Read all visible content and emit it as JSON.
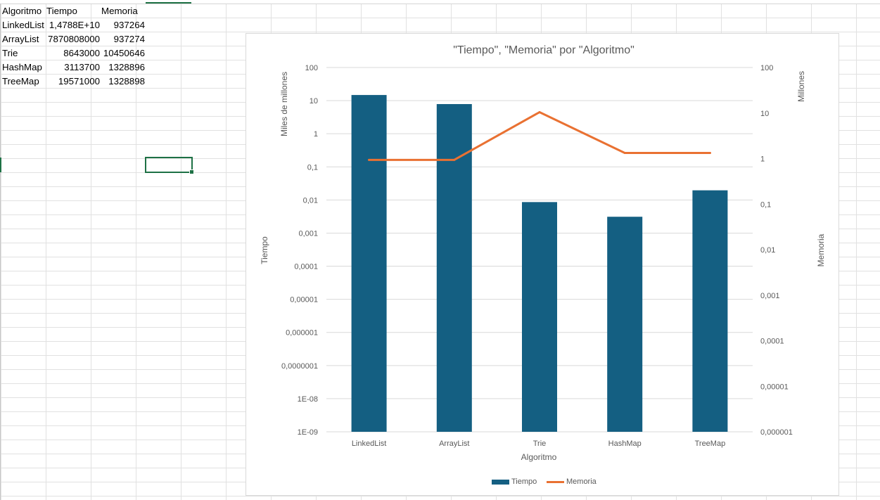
{
  "sheet": {
    "headers": [
      "Algoritmo",
      "Tiempo",
      "Memoria"
    ],
    "rows": [
      [
        "LinkedList",
        "1,4788E+10",
        "937264"
      ],
      [
        "ArrayList",
        "7870808000",
        "937274"
      ],
      [
        "Trie",
        "8643000",
        "10450646"
      ],
      [
        "HashMap",
        "3113700",
        "1328896"
      ],
      [
        "TreeMap",
        "19571000",
        "1328898"
      ]
    ]
  },
  "chart_data": {
    "type": "bar",
    "title": "\"Tiempo\", \"Memoria\" por \"Algoritmo\"",
    "xlabel": "Algoritmo",
    "ylabel": "Tiempo",
    "y2label": "Memoria",
    "y_display_units": "Miles de millones",
    "y2_display_units": "Millones",
    "categories": [
      "LinkedList",
      "ArrayList",
      "Trie",
      "HashMap",
      "TreeMap"
    ],
    "y_scale": "log",
    "y_ticks": [
      "100",
      "10",
      "1",
      "0,1",
      "0,01",
      "0,001",
      "0,0001",
      "0,00001",
      "0,000001",
      "0,0000001",
      "1E-08",
      "1E-09"
    ],
    "ylim": [
      1e-09,
      100
    ],
    "y2_scale": "log",
    "y2_ticks": [
      "100",
      "10",
      "1",
      "0,1",
      "0,01",
      "0,001",
      "0,0001",
      "0,00001",
      "0,000001"
    ],
    "y2lim": [
      1e-06,
      100
    ],
    "legend_position": "bottom",
    "grid": true,
    "series": [
      {
        "name": "Tiempo",
        "kind": "bar",
        "axis": "left",
        "color": "#145f82",
        "values": [
          14.788,
          7.870808,
          0.008643,
          0.0031137,
          0.019571
        ]
      },
      {
        "name": "Memoria",
        "kind": "line",
        "axis": "right",
        "color": "#e97132",
        "values": [
          0.937264,
          0.937274,
          10.450646,
          1.328896,
          1.328898
        ]
      }
    ]
  }
}
